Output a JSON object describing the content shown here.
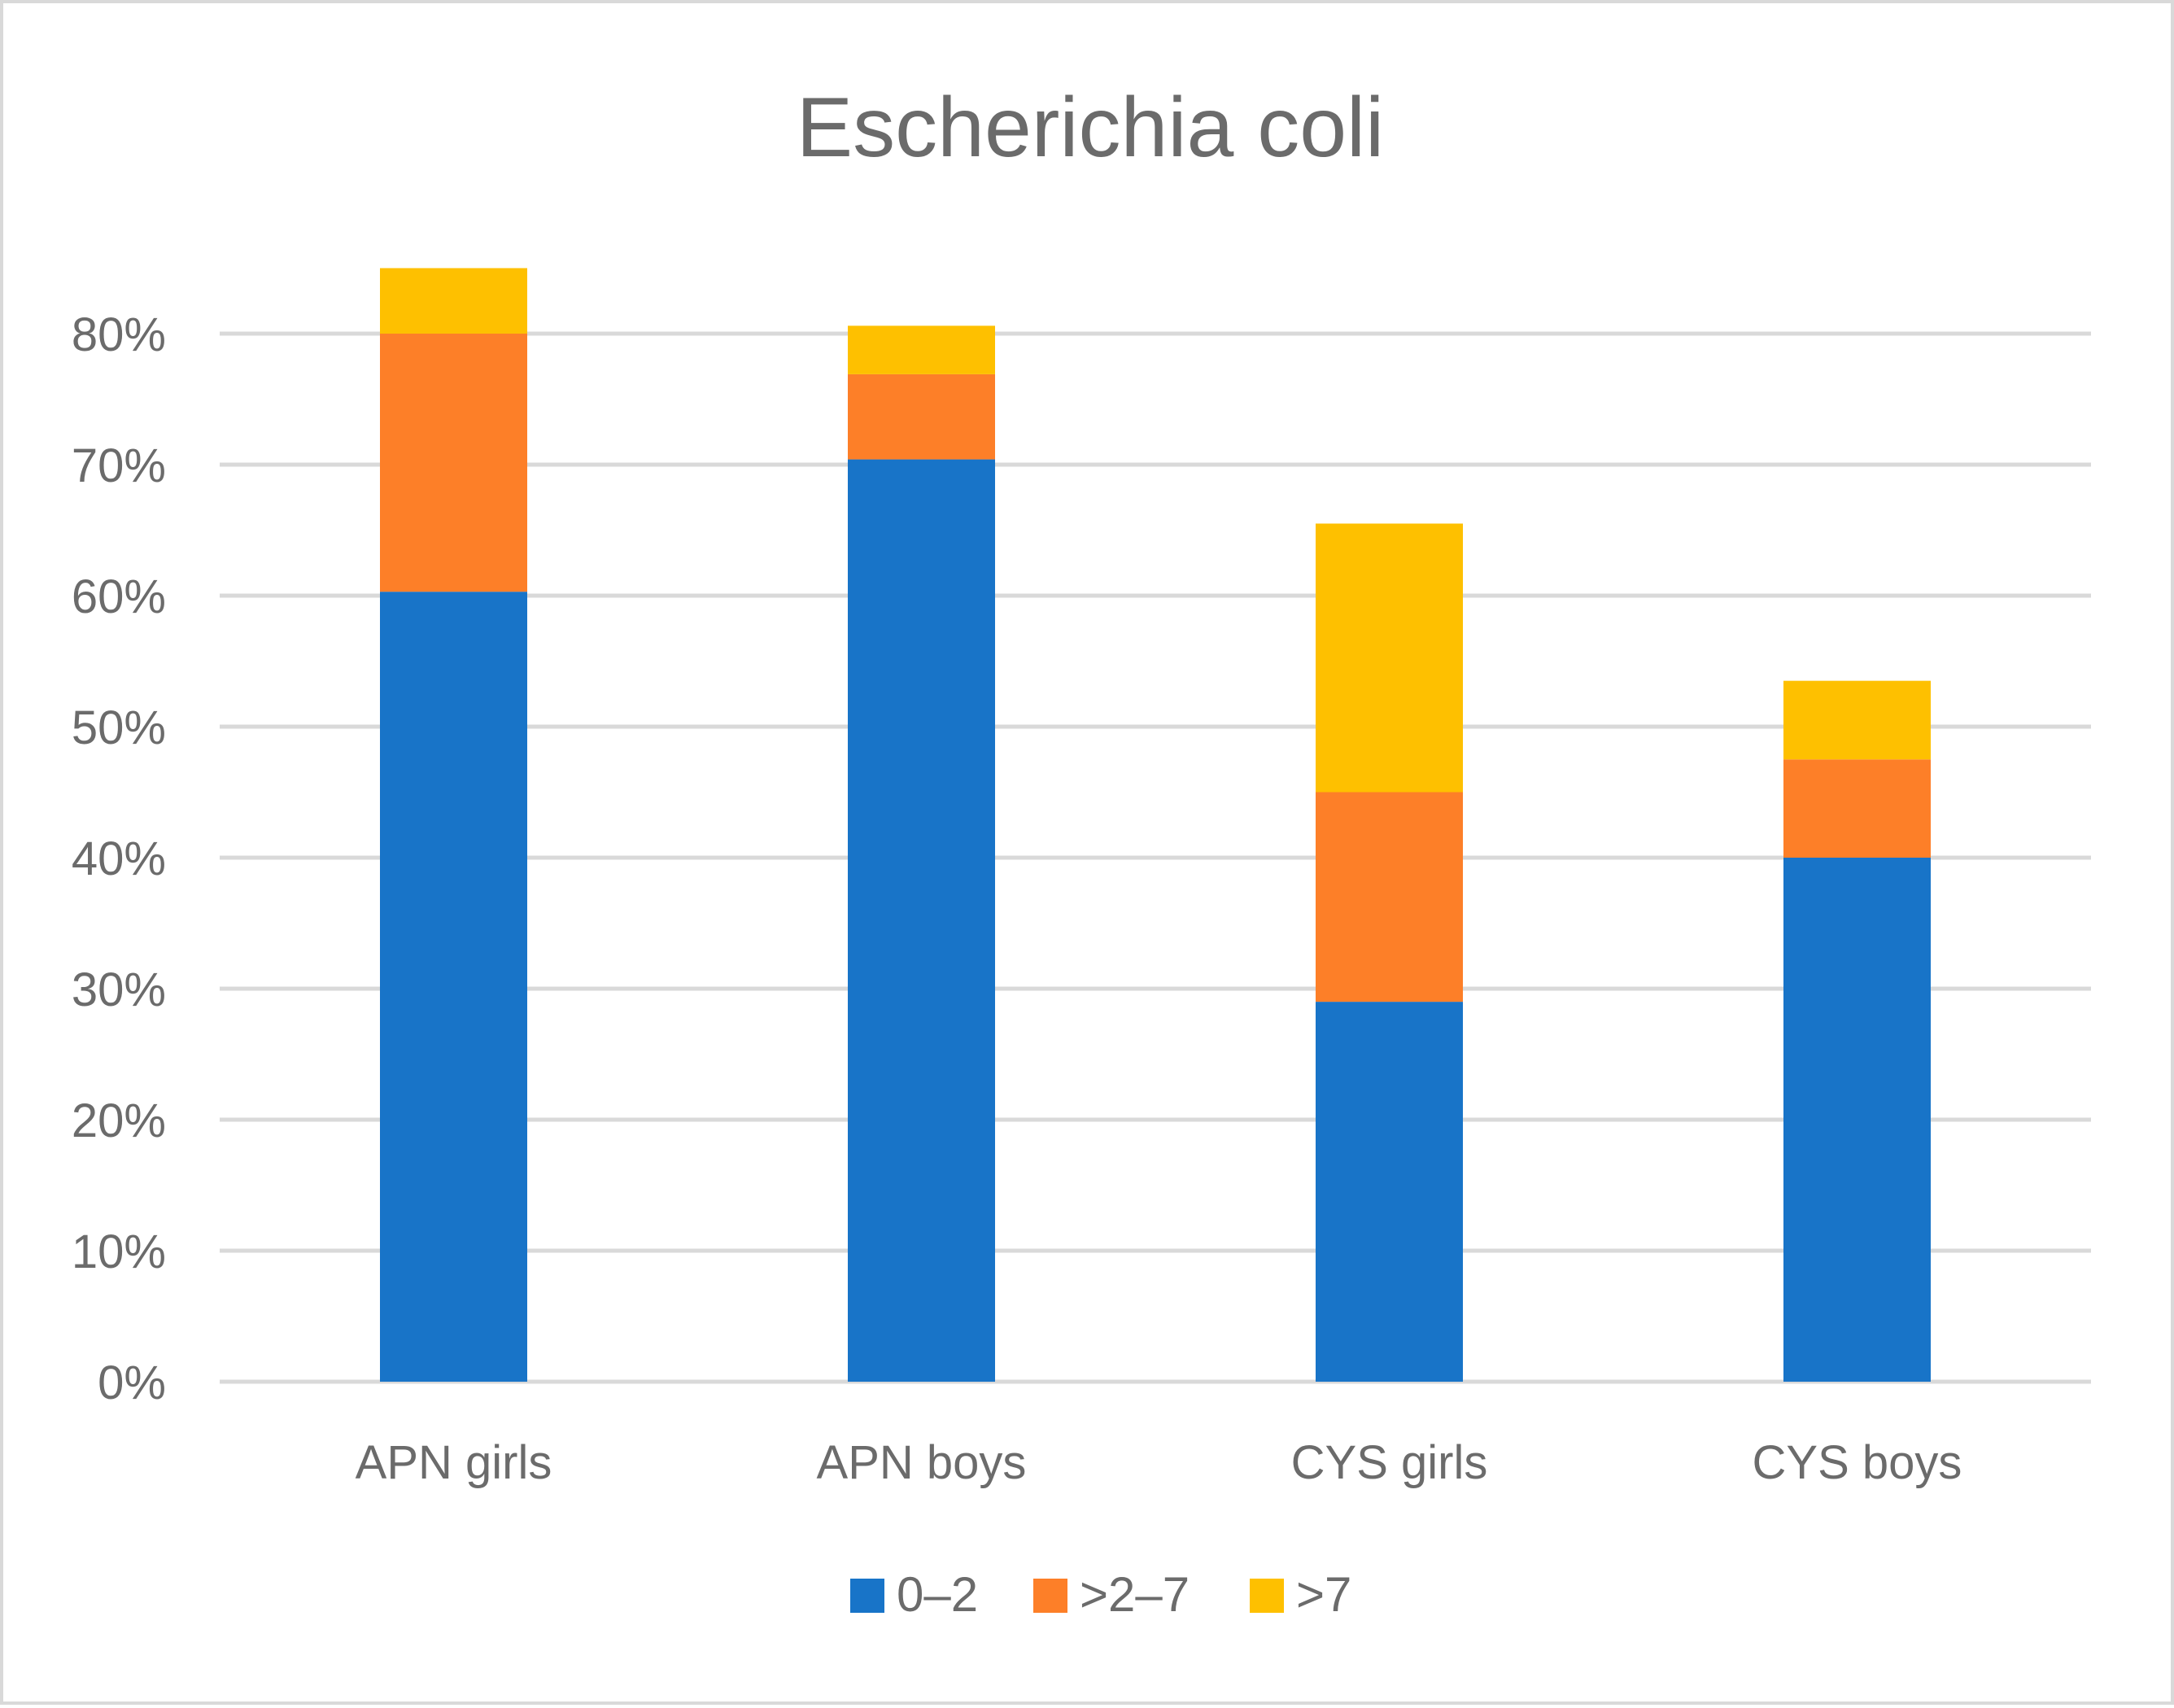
{
  "chart_data": {
    "type": "bar",
    "stacked": true,
    "title": "Escherichia coli",
    "xlabel": "",
    "ylabel": "",
    "ylim": [
      0,
      80
    ],
    "ytick_values": [
      0,
      10,
      20,
      30,
      40,
      50,
      60,
      70,
      80
    ],
    "yticks": [
      "0%",
      "10%",
      "20%",
      "30%",
      "40%",
      "50%",
      "60%",
      "70%",
      "80%"
    ],
    "grid": true,
    "legend_position": "bottom",
    "categories": [
      "APN girls",
      "APN boys",
      "CYS girls",
      "CYS boys"
    ],
    "series": [
      {
        "name": "0–2",
        "color": "#1874c8",
        "values": [
          60.3,
          70.4,
          29.0,
          40.0
        ]
      },
      {
        "name": ">2–7",
        "color": "#fd7f28",
        "values": [
          19.7,
          6.5,
          16.0,
          7.5
        ]
      },
      {
        "name": ">7",
        "color": "#fec000",
        "values": [
          5.0,
          3.7,
          20.5,
          6.0
        ]
      }
    ]
  }
}
